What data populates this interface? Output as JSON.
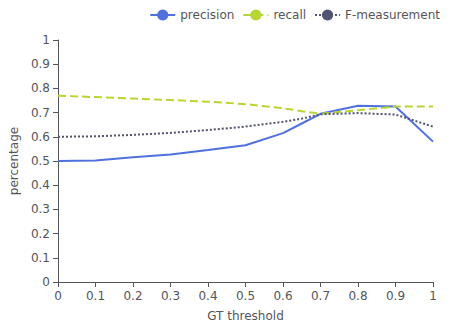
{
  "chart_data": {
    "type": "line",
    "x": [
      0.0,
      0.1,
      0.2,
      0.3,
      0.4,
      0.5,
      0.6,
      0.65,
      0.7,
      0.8,
      0.9,
      1.0
    ],
    "series": [
      {
        "name": "precision",
        "line_style": "solid",
        "values": [
          0.5,
          0.502,
          0.515,
          0.527,
          0.545,
          0.565,
          0.615,
          0.655,
          0.695,
          0.728,
          0.725,
          0.58
        ]
      },
      {
        "name": "recall",
        "line_style": "dashed",
        "values": [
          0.77,
          0.764,
          0.758,
          0.752,
          0.745,
          0.735,
          0.718,
          0.706,
          0.695,
          0.71,
          0.725,
          0.725
        ]
      },
      {
        "name": "F-measurement",
        "line_style": "dotted",
        "values": [
          0.6,
          0.602,
          0.608,
          0.616,
          0.628,
          0.642,
          0.662,
          0.675,
          0.693,
          0.698,
          0.692,
          0.642
        ]
      }
    ],
    "xlabel": "GT threshold",
    "ylabel": "percentage",
    "xlim": [
      0,
      1
    ],
    "ylim": [
      0,
      1
    ],
    "xticks": [
      0,
      0.1,
      0.2,
      0.3,
      0.4,
      0.5,
      0.6,
      0.7,
      0.8,
      0.9,
      1
    ],
    "yticks": [
      0,
      0.1,
      0.2,
      0.3,
      0.4,
      0.5,
      0.6,
      0.7,
      0.8,
      0.9,
      1
    ],
    "grid": false,
    "legend": "upper right"
  }
}
